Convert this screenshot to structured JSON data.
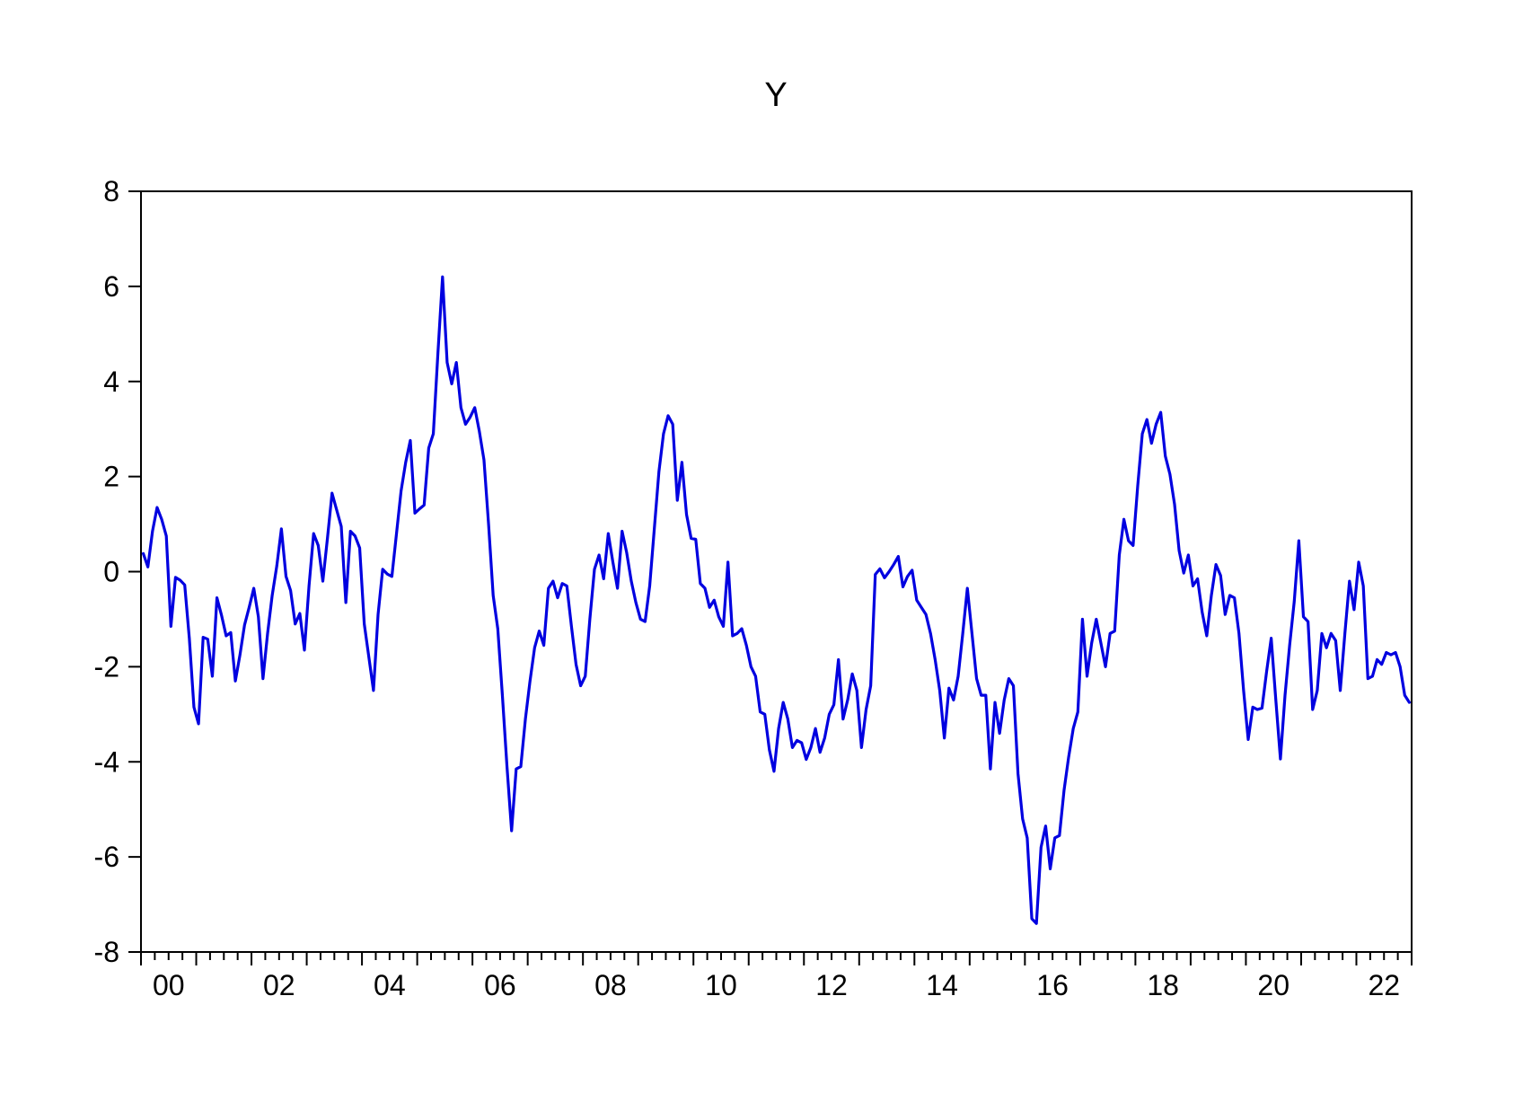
{
  "title": "Y",
  "chart_data": {
    "type": "line",
    "title": "Y",
    "xlabel": "",
    "ylabel": "",
    "ylim": [
      -8,
      8
    ],
    "y_tick_step": 2,
    "y_tick_labels": [
      "-8",
      "-6",
      "-4",
      "-2",
      "0",
      "2",
      "4",
      "6",
      "8"
    ],
    "x_tick_labels": [
      "00",
      "02",
      "04",
      "06",
      "08",
      "10",
      "12",
      "14",
      "16",
      "18",
      "20",
      "22"
    ],
    "x_years": 23,
    "x_minor_ticks_per_year": 4,
    "grid": "off",
    "legend": "none",
    "frame_color": "#000000",
    "background": "#ffffff",
    "series": [
      {
        "name": "Y",
        "color": "#0000e0",
        "start": "2000M01",
        "end": "2022M12",
        "frequency": "monthly",
        "values": [
          0.38,
          0.1,
          0.85,
          1.35,
          1.1,
          0.75,
          -1.15,
          -0.12,
          -0.18,
          -0.28,
          -1.4,
          -2.85,
          -3.2,
          -1.38,
          -1.42,
          -2.2,
          -0.55,
          -0.92,
          -1.35,
          -1.28,
          -2.3,
          -1.75,
          -1.12,
          -0.75,
          -0.35,
          -0.95,
          -2.25,
          -1.3,
          -0.5,
          0.12,
          0.9,
          -0.1,
          -0.4,
          -1.1,
          -0.88,
          -1.65,
          -0.3,
          0.8,
          0.55,
          -0.2,
          0.7,
          1.65,
          1.3,
          0.95,
          -0.65,
          0.85,
          0.75,
          0.5,
          -1.1,
          -1.8,
          -2.5,
          -0.9,
          0.05,
          -0.05,
          -0.1,
          0.8,
          1.7,
          2.3,
          2.76,
          1.23,
          1.32,
          1.4,
          2.6,
          2.9,
          4.6,
          6.2,
          4.4,
          3.95,
          4.4,
          3.45,
          3.1,
          3.25,
          3.45,
          2.95,
          2.35,
          1.0,
          -0.5,
          -1.2,
          -2.6,
          -4.1,
          -5.45,
          -4.15,
          -4.1,
          -3.1,
          -2.3,
          -1.6,
          -1.25,
          -1.55,
          -0.35,
          -0.2,
          -0.55,
          -0.25,
          -0.3,
          -1.15,
          -1.95,
          -2.4,
          -2.2,
          -1.0,
          0.05,
          0.35,
          -0.15,
          0.8,
          0.2,
          -0.35,
          0.85,
          0.4,
          -0.2,
          -0.65,
          -1.0,
          -1.05,
          -0.3,
          0.9,
          2.1,
          2.9,
          3.28,
          3.1,
          1.5,
          2.3,
          1.2,
          0.7,
          0.68,
          -0.25,
          -0.35,
          -0.75,
          -0.6,
          -0.95,
          -1.15,
          0.2,
          -1.35,
          -1.3,
          -1.2,
          -1.55,
          -2.0,
          -2.2,
          -2.95,
          -3.0,
          -3.75,
          -4.2,
          -3.3,
          -2.75,
          -3.1,
          -3.7,
          -3.55,
          -3.6,
          -3.95,
          -3.7,
          -3.3,
          -3.8,
          -3.5,
          -3.0,
          -2.8,
          -1.85,
          -3.1,
          -2.7,
          -2.15,
          -2.5,
          -3.7,
          -2.9,
          -2.4,
          -0.06,
          0.06,
          -0.13,
          0.0,
          0.15,
          0.32,
          -0.32,
          -0.1,
          0.03,
          -0.6,
          -0.75,
          -0.9,
          -1.3,
          -1.85,
          -2.5,
          -3.5,
          -2.45,
          -2.7,
          -2.2,
          -1.3,
          -0.35,
          -1.3,
          -2.25,
          -2.6,
          -2.6,
          -4.15,
          -2.75,
          -3.4,
          -2.7,
          -2.25,
          -2.4,
          -4.25,
          -5.2,
          -5.6,
          -7.3,
          -7.4,
          -5.8,
          -5.35,
          -6.25,
          -5.6,
          -5.55,
          -4.6,
          -3.9,
          -3.3,
          -2.95,
          -1.0,
          -2.2,
          -1.5,
          -1.0,
          -1.5,
          -2.0,
          -1.3,
          -1.25,
          0.35,
          1.1,
          0.65,
          0.55,
          1.8,
          2.9,
          3.2,
          2.7,
          3.1,
          3.35,
          2.43,
          2.05,
          1.42,
          0.44,
          -0.03,
          0.35,
          -0.3,
          -0.15,
          -0.85,
          -1.35,
          -0.5,
          0.15,
          -0.08,
          -0.9,
          -0.5,
          -0.55,
          -1.3,
          -2.5,
          -3.53,
          -2.85,
          -2.9,
          -2.87,
          -2.1,
          -1.4,
          -2.7,
          -3.94,
          -2.6,
          -1.55,
          -0.63,
          0.65,
          -0.95,
          -1.05,
          -2.9,
          -2.5,
          -1.3,
          -1.6,
          -1.3,
          -1.45,
          -2.5,
          -1.3,
          -0.2,
          -0.8,
          0.2,
          -0.3,
          -2.25,
          -2.2,
          -1.85,
          -1.95,
          -1.7,
          -1.75,
          -1.7,
          -2.0,
          -2.6,
          -2.75
        ]
      }
    ]
  }
}
